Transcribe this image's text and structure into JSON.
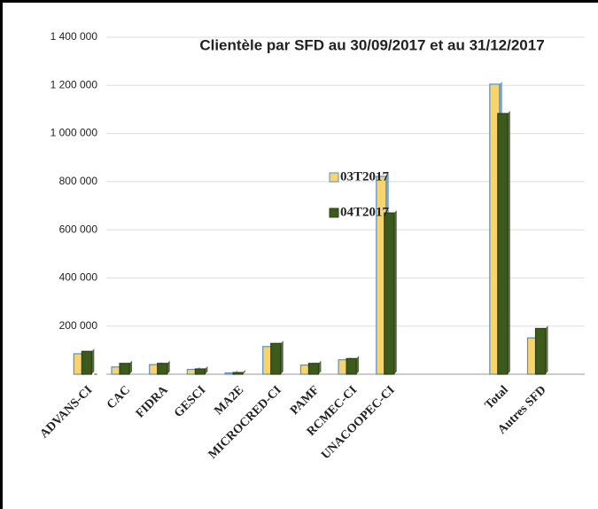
{
  "chart_data": {
    "type": "bar",
    "title": "Clientèle par SFD au 30/09/2017 et au 31/12/2017",
    "categories": [
      "ADVANS-CI",
      "CAC",
      "FIDRA",
      "GESCI",
      "MA2E",
      "MICROCRED-CI",
      "PAMF",
      "RCMEC-CI",
      "UNACOOPEC-CI",
      null,
      null,
      "Total",
      "Autres SFD"
    ],
    "series": [
      {
        "name": "03T2017",
        "color": "#f8d46c",
        "values": [
          85000,
          30000,
          40000,
          20000,
          5000,
          115000,
          38000,
          60000,
          822000,
          null,
          null,
          1205000,
          151000
        ]
      },
      {
        "name": "04T2017",
        "color": "#3b5a1c",
        "values": [
          95000,
          45000,
          45000,
          22000,
          7000,
          128000,
          45000,
          65000,
          670000,
          null,
          null,
          1083000,
          190000
        ]
      }
    ],
    "ylim": [
      0,
      1400000
    ],
    "yticks": [
      {
        "value": 0,
        "label": "-"
      },
      {
        "value": 200000,
        "label": "200 000"
      },
      {
        "value": 400000,
        "label": "400 000"
      },
      {
        "value": 600000,
        "label": "600 000"
      },
      {
        "value": 800000,
        "label": "800 000"
      },
      {
        "value": 1000000,
        "label": "1 000 000"
      },
      {
        "value": 1200000,
        "label": "1 200 000"
      },
      {
        "value": 1400000,
        "label": "1 400 000"
      }
    ],
    "grid": true
  }
}
